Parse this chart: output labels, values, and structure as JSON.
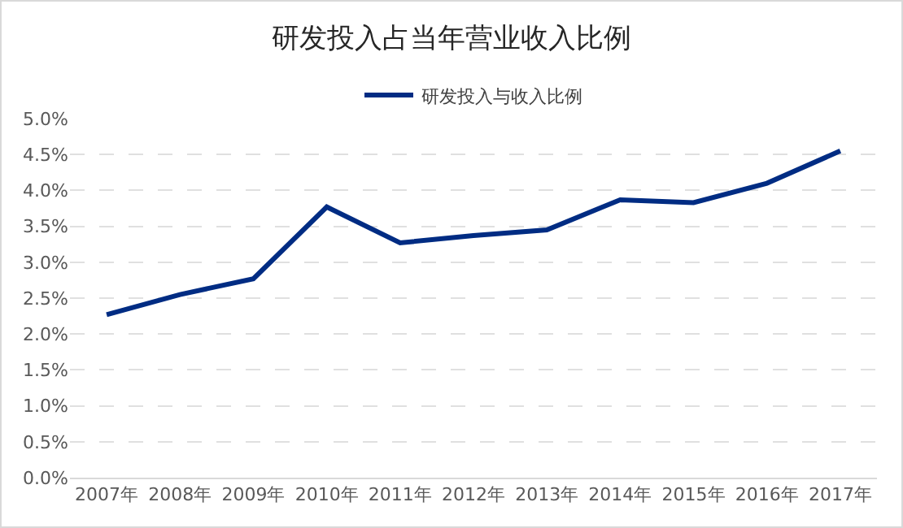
{
  "chart_data": {
    "type": "line",
    "title": "研发投入占当年营业收入比例",
    "categories": [
      "2007年",
      "2008年",
      "2009年",
      "2010年",
      "2011年",
      "2012年",
      "2013年",
      "2014年",
      "2015年",
      "2016年",
      "2017年"
    ],
    "series": [
      {
        "name": "研发投入与收入比例",
        "color": "#002c83",
        "values": [
          2.27,
          2.55,
          2.77,
          3.77,
          3.27,
          3.37,
          3.45,
          3.87,
          3.83,
          4.1,
          4.55
        ]
      }
    ],
    "ylim": [
      0,
      5
    ],
    "yticks": [
      {
        "value": 0,
        "label": "0.0%"
      },
      {
        "value": 0.5,
        "label": "0.5%"
      },
      {
        "value": 1,
        "label": "1.0%"
      },
      {
        "value": 1.5,
        "label": "1.5%"
      },
      {
        "value": 2,
        "label": "2.0%"
      },
      {
        "value": 2.5,
        "label": "2.5%"
      },
      {
        "value": 3,
        "label": "3.0%"
      },
      {
        "value": 3.5,
        "label": "3.5%"
      },
      {
        "value": 4,
        "label": "4.0%"
      },
      {
        "value": 4.5,
        "label": "4.5%"
      },
      {
        "value": 5,
        "label": "5.0%"
      }
    ],
    "grid": "y",
    "legend": "top",
    "marker": "none",
    "line_style": "solid"
  }
}
